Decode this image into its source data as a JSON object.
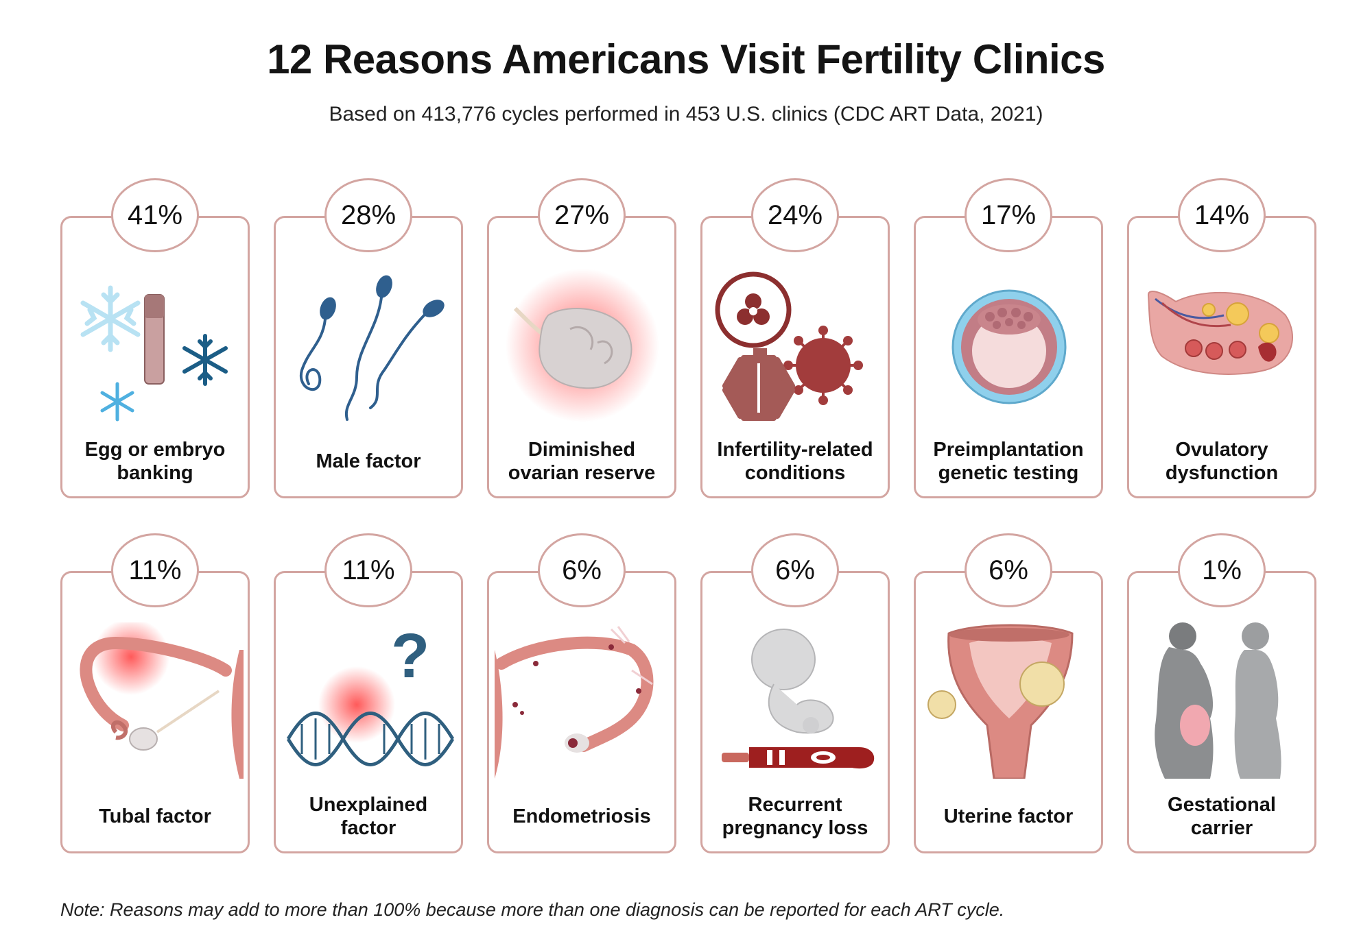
{
  "header": {
    "title": "12 Reasons Americans Visit Fertility Clinics",
    "subtitle": "Based on 413,776 cycles performed in 453 U.S. clinics (CDC ART Data, 2021)"
  },
  "note": "Note: Reasons may add to more than 100% because more than one diagnosis can be reported for each ART cycle.",
  "colors": {
    "border": "#d3a5a1",
    "accent_red": "#9c3a3a",
    "reproductive_pink": "#d9857f",
    "dark_blue": "#1f5f85",
    "light_blue": "#8fd0ec"
  },
  "chart_data": {
    "type": "table",
    "title": "12 Reasons Americans Visit Fertility Clinics",
    "subtitle": "Based on 413,776 cycles performed in 453 U.S. clinics (CDC ART Data, 2021)",
    "unit": "%",
    "rows": [
      {
        "percent_label": "41%",
        "value": 41,
        "label_lines": [
          "Egg or embryo",
          "banking"
        ],
        "icon": "egg-embryo-banking-icon"
      },
      {
        "percent_label": "28%",
        "value": 28,
        "label_lines": [
          "Male factor"
        ],
        "icon": "sperm-icon"
      },
      {
        "percent_label": "27%",
        "value": 27,
        "label_lines": [
          "Diminished",
          "ovarian reserve"
        ],
        "icon": "ovary-icon"
      },
      {
        "percent_label": "24%",
        "value": 24,
        "label_lines": [
          "Infertility-related",
          "conditions"
        ],
        "icon": "biohazard-virus-medical-icon"
      },
      {
        "percent_label": "17%",
        "value": 17,
        "label_lines": [
          "Preimplantation",
          "genetic testing"
        ],
        "icon": "blastocyst-icon"
      },
      {
        "percent_label": "14%",
        "value": 14,
        "label_lines": [
          "Ovulatory",
          "dysfunction"
        ],
        "icon": "ovary-follicles-icon"
      },
      {
        "percent_label": "11%",
        "value": 11,
        "label_lines": [
          "Tubal factor"
        ],
        "icon": "fallopian-tube-icon"
      },
      {
        "percent_label": "11%",
        "value": 11,
        "label_lines": [
          "Unexplained",
          "factor"
        ],
        "icon": "dna-question-icon"
      },
      {
        "percent_label": "6%",
        "value": 6,
        "label_lines": [
          "Endometriosis"
        ],
        "icon": "endometriosis-icon"
      },
      {
        "percent_label": "6%",
        "value": 6,
        "label_lines": [
          "Recurrent",
          "pregnancy loss"
        ],
        "icon": "fetus-test-icon"
      },
      {
        "percent_label": "6%",
        "value": 6,
        "label_lines": [
          "Uterine factor"
        ],
        "icon": "uterus-icon"
      },
      {
        "percent_label": "1%",
        "value": 1,
        "label_lines": [
          "Gestational",
          "carrier"
        ],
        "icon": "gestational-carrier-icon"
      }
    ]
  }
}
